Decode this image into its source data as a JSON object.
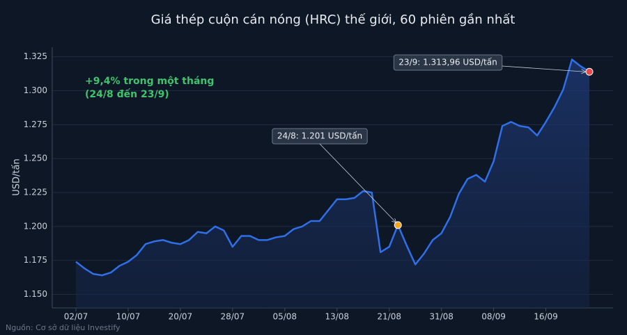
{
  "chart_data": {
    "type": "line",
    "title": "Giá thép cuộn cán nóng (HRC) thế giới, 60 phiên gần nhất",
    "y_label": "USD/tấn",
    "source": "Nguồn: Cơ sở dữ liệu Investify",
    "categories": [
      "02/07",
      null,
      null,
      null,
      null,
      null,
      "10/07",
      null,
      null,
      null,
      null,
      null,
      "20/07",
      null,
      null,
      null,
      null,
      null,
      "28/07",
      null,
      null,
      null,
      null,
      null,
      "05/08",
      null,
      null,
      null,
      null,
      null,
      "13/08",
      null,
      null,
      null,
      null,
      null,
      "21/08",
      null,
      null,
      null,
      null,
      null,
      "31/08",
      null,
      null,
      null,
      null,
      null,
      "08/09",
      null,
      null,
      null,
      null,
      null,
      "16/09",
      null,
      null,
      null,
      null,
      null
    ],
    "series": [
      {
        "name": "HRC",
        "color": "#2f6fe8",
        "values": [
          1174,
          1169,
          1165,
          1164,
          1166,
          1171,
          1174,
          1179,
          1187,
          1189,
          1190,
          1188,
          1187,
          1190,
          1196,
          1195,
          1200,
          1197,
          1185,
          1193,
          1193,
          1190,
          1190,
          1192,
          1193,
          1198,
          1200,
          1204,
          1204,
          1212,
          1220,
          1220,
          1221,
          1226,
          1225,
          1181,
          1185,
          1201,
          1186,
          1172,
          1180,
          1190,
          1195,
          1207,
          1224,
          1235,
          1238,
          1233,
          1248,
          1274,
          1277,
          1274,
          1273,
          1267,
          1277,
          1288,
          1301,
          1323,
          1318,
          1313.96
        ]
      }
    ],
    "ylim": [
      1140,
      1332
    ],
    "yticks": [
      {
        "value": 1150,
        "label": "1.150"
      },
      {
        "value": 1175,
        "label": "1.175"
      },
      {
        "value": 1200,
        "label": "1.200"
      },
      {
        "value": 1225,
        "label": "1.225"
      },
      {
        "value": 1250,
        "label": "1.250"
      },
      {
        "value": 1275,
        "label": "1.275"
      },
      {
        "value": 1300,
        "label": "1.300"
      },
      {
        "value": 1325,
        "label": "1.325"
      }
    ],
    "grid": true,
    "annotations": [
      {
        "text": "24/8: 1.201 USD/tấn",
        "color": "#f5a623"
      },
      {
        "text": "23/9: 1.313,96 USD/tấn",
        "color": "#e84a4a"
      }
    ],
    "highlight": [
      "+9,4% trong một tháng",
      "(24/8 đến 23/9)"
    ],
    "highlight_color": "#3ec46d"
  }
}
